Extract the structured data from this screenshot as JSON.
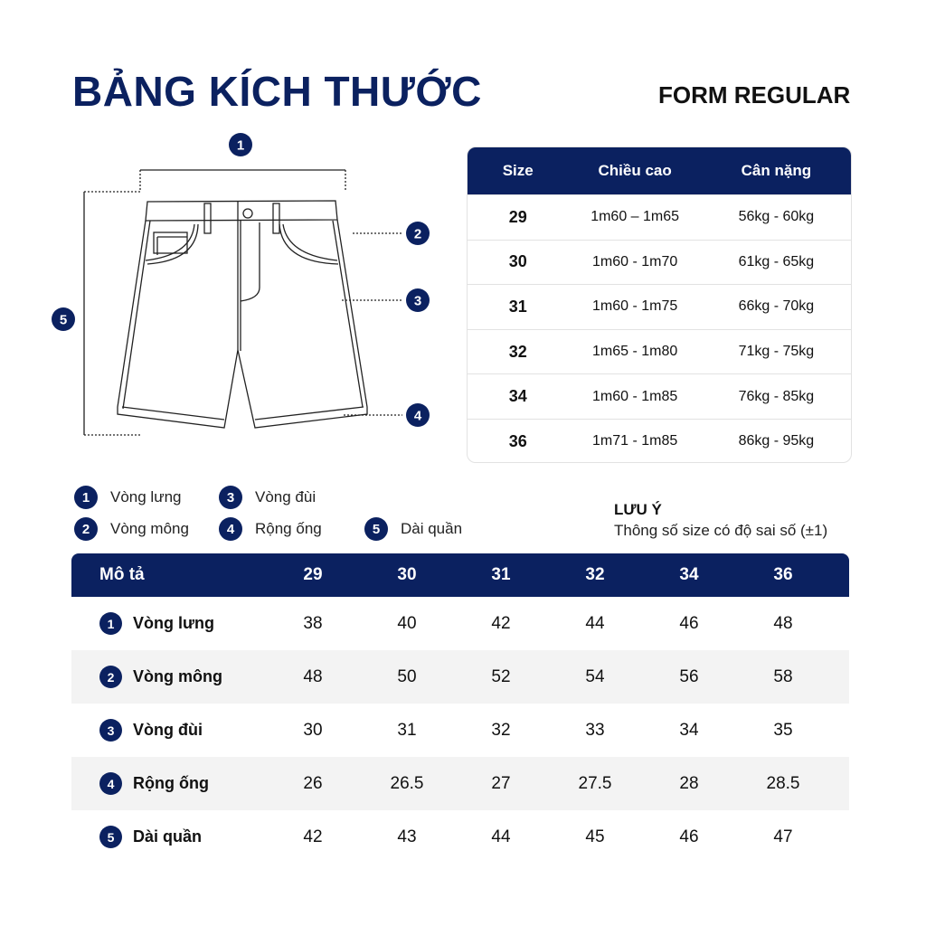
{
  "title": "BẢNG KÍCH THƯỚC",
  "form": "FORM REGULAR",
  "brand_color": "#0b2160",
  "diagram_markers": [
    "1",
    "2",
    "3",
    "4",
    "5"
  ],
  "size_table": {
    "headers": [
      "Size",
      "Chiều cao",
      "Cân nặng"
    ],
    "rows": [
      [
        "29",
        "1m60 – 1m65",
        "56kg - 60kg"
      ],
      [
        "30",
        "1m60 - 1m70",
        "61kg - 65kg"
      ],
      [
        "31",
        "1m60 - 1m75",
        "66kg - 70kg"
      ],
      [
        "32",
        "1m65 - 1m80",
        "71kg - 75kg"
      ],
      [
        "34",
        "1m60 - 1m85",
        "76kg - 85kg"
      ],
      [
        "36",
        "1m71 - 1m85",
        "86kg - 95kg"
      ]
    ]
  },
  "legend": [
    {
      "num": "1",
      "label": "Vòng lưng"
    },
    {
      "num": "2",
      "label": "Vòng mông"
    },
    {
      "num": "3",
      "label": "Vòng đùi"
    },
    {
      "num": "4",
      "label": "Rộng ống"
    },
    {
      "num": "5",
      "label": "Dài quần"
    }
  ],
  "note": {
    "title": "LƯU Ý",
    "text": "Thông số size có độ sai số (±1)"
  },
  "measure_table": {
    "headers": [
      "Mô tả",
      "29",
      "30",
      "31",
      "32",
      "34",
      "36"
    ],
    "rows": [
      {
        "num": "1",
        "label": "Vòng lưng",
        "values": [
          "38",
          "40",
          "42",
          "44",
          "46",
          "48"
        ]
      },
      {
        "num": "2",
        "label": "Vòng mông",
        "values": [
          "48",
          "50",
          "52",
          "54",
          "56",
          "58"
        ]
      },
      {
        "num": "3",
        "label": "Vòng đùi",
        "values": [
          "30",
          "31",
          "32",
          "33",
          "34",
          "35"
        ]
      },
      {
        "num": "4",
        "label": "Rộng ống",
        "values": [
          "26",
          "26.5",
          "27",
          "27.5",
          "28",
          "28.5"
        ]
      },
      {
        "num": "5",
        "label": "Dài quần",
        "values": [
          "42",
          "43",
          "44",
          "45",
          "46",
          "47"
        ]
      }
    ]
  }
}
